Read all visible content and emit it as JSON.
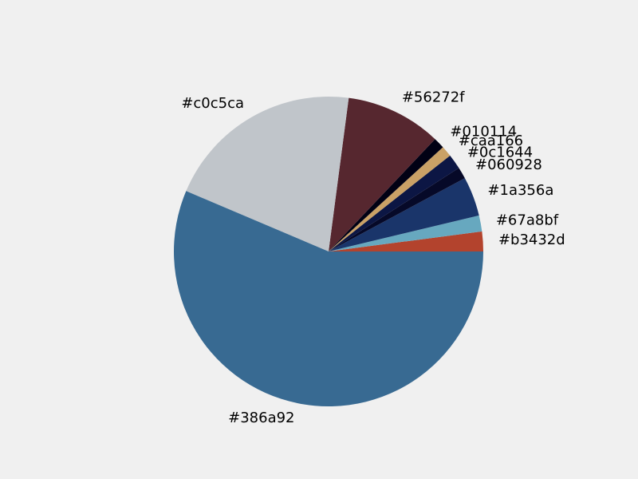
{
  "chart_data": {
    "type": "pie",
    "title": "",
    "start_angle_deg": 0,
    "direction": "counterclockwise",
    "background": "#f0f0f0",
    "slices": [
      {
        "label": "#b3432d",
        "value": 2.07,
        "color": "#b3432d"
      },
      {
        "label": "#67a8bf",
        "value": 1.67,
        "color": "#67a8bf"
      },
      {
        "label": "#1a356a",
        "value": 4.11,
        "color": "#1a356a"
      },
      {
        "label": "#060928",
        "value": 1.21,
        "color": "#060928"
      },
      {
        "label": "#0c1644",
        "value": 1.57,
        "color": "#0c1644"
      },
      {
        "label": "#caa166",
        "value": 1.13,
        "color": "#caa166"
      },
      {
        "label": "#010114",
        "value": 1.16,
        "color": "#010114"
      },
      {
        "label": "#56272f",
        "value": 10.0,
        "color": "#56272f"
      },
      {
        "label": "#c0c5ca",
        "value": 20.7,
        "color": "#c0c5ca"
      },
      {
        "label": "#386a92",
        "value": 56.38,
        "color": "#386a92"
      }
    ]
  }
}
